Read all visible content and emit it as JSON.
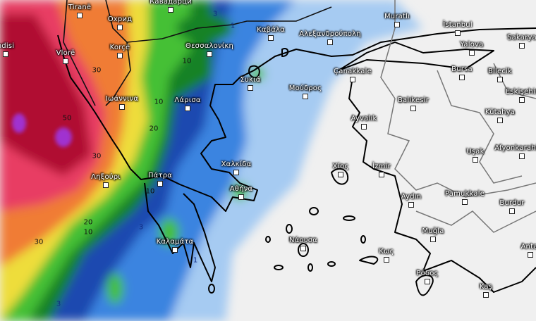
{
  "map": {
    "type": "precipitation accumulation",
    "colors": {
      "background": "#f0f0f0",
      "purple": "#a030d0",
      "dark_red": "#b01030",
      "red": "#e83c64",
      "orange": "#f07c34",
      "yellow": "#eedd3a",
      "green": "#44c034",
      "dark_green": "#128228",
      "dark_blue": "#1a48b0",
      "blue": "#3a84e0",
      "light_blue": "#a6cbf2"
    },
    "cities": [
      {
        "name": "Tiranë"
      },
      {
        "name": "Охрид"
      },
      {
        "name": "Кавадарци"
      },
      {
        "name": "Korçë"
      },
      {
        "name": "Vlorë"
      },
      {
        "name": "ndisi"
      },
      {
        "name": "Θεσσαλονίκη"
      },
      {
        "name": "Ιωάννινα"
      },
      {
        "name": "Λάρισα"
      },
      {
        "name": "Συκιά"
      },
      {
        "name": "Καβάλα"
      },
      {
        "name": "Αλεξανδρούπολη"
      },
      {
        "name": "Muratlı"
      },
      {
        "name": "İstanbul"
      },
      {
        "name": "Sakarya"
      },
      {
        "name": "Yalova"
      },
      {
        "name": "Bursa"
      },
      {
        "name": "Bilecik"
      },
      {
        "name": "Çanakkale"
      },
      {
        "name": "Μούδρος"
      },
      {
        "name": "Balıkesir"
      },
      {
        "name": "Eskişehir"
      },
      {
        "name": "Kütahya"
      },
      {
        "name": "Ayvalık"
      },
      {
        "name": "Uşak"
      },
      {
        "name": "Afyonkarahisar"
      },
      {
        "name": "Χαλκίδα"
      },
      {
        "name": "Πάτρα"
      },
      {
        "name": "Ληξούρι"
      },
      {
        "name": "Αθήνα"
      },
      {
        "name": "Καλαμάτα"
      },
      {
        "name": "Χίος"
      },
      {
        "name": "İzmir"
      },
      {
        "name": "Aydın"
      },
      {
        "name": "Pamukkale"
      },
      {
        "name": "Burdur"
      },
      {
        "name": "Muğla"
      },
      {
        "name": "Νάουσα"
      },
      {
        "name": "Κως"
      },
      {
        "name": "Ρόδος"
      },
      {
        "name": "Kaş"
      },
      {
        "name": "Antal"
      }
    ],
    "contour_labels": [
      "30",
      "10",
      "1",
      "3",
      "10",
      "20",
      "50",
      "30",
      "10",
      "20",
      "10",
      "30",
      "3",
      "3",
      "1"
    ]
  }
}
